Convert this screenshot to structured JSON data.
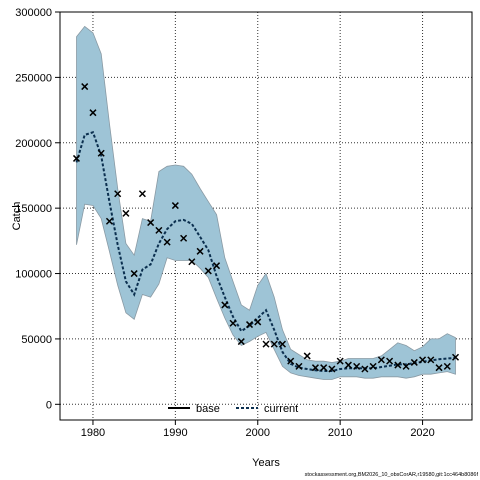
{
  "chart_data": {
    "type": "line",
    "xlabel": "Years",
    "ylabel": "Catch",
    "xlim": [
      1976,
      2026
    ],
    "ylim": [
      -12000,
      300000
    ],
    "xticks": [
      1980,
      1990,
      2000,
      2010,
      2020
    ],
    "yticks": [
      0,
      50000,
      100000,
      150000,
      200000,
      250000,
      300000
    ],
    "grid": true,
    "legend_position": "bottom-center",
    "colors": {
      "band_fill": "#9ec4d6",
      "band_edge": "#8a9aa4",
      "current_line": "#0b2f4f",
      "base_line": "#000000",
      "points": "#000000",
      "grid": "#333333"
    },
    "series": [
      {
        "name": "base",
        "style": "solid",
        "values": []
      },
      {
        "name": "current",
        "style": "dashed",
        "x": [
          1978,
          1979,
          1980,
          1981,
          1982,
          1983,
          1984,
          1985,
          1986,
          1987,
          1988,
          1989,
          1990,
          1991,
          1992,
          1993,
          1994,
          1995,
          1996,
          1997,
          1998,
          1999,
          2000,
          2001,
          2002,
          2003,
          2004,
          2005,
          2006,
          2007,
          2008,
          2009,
          2010,
          2011,
          2012,
          2013,
          2014,
          2015,
          2016,
          2017,
          2018,
          2019,
          2020,
          2021,
          2022,
          2023,
          2024
        ],
        "y": [
          185000,
          206000,
          208000,
          190000,
          155000,
          122000,
          94000,
          84000,
          103000,
          107000,
          123000,
          134000,
          140000,
          141000,
          138000,
          128000,
          118000,
          98000,
          82000,
          67000,
          56000,
          60000,
          66000,
          72000,
          57000,
          40000,
          31000,
          28000,
          27000,
          26000,
          25500,
          25500,
          27000,
          27500,
          27500,
          27500,
          27500,
          28500,
          29500,
          30500,
          30500,
          31500,
          32500,
          33500,
          34500,
          35000,
          35500
        ]
      }
    ],
    "band": {
      "x": [
        1978,
        1979,
        1980,
        1981,
        1982,
        1983,
        1984,
        1985,
        1986,
        1987,
        1988,
        1989,
        1990,
        1991,
        1992,
        1993,
        1994,
        1995,
        1996,
        1997,
        1998,
        1999,
        2000,
        2001,
        2002,
        2003,
        2004,
        2005,
        2006,
        2007,
        2008,
        2009,
        2010,
        2011,
        2012,
        2013,
        2014,
        2015,
        2016,
        2017,
        2018,
        2019,
        2020,
        2021,
        2022,
        2023,
        2024
      ],
      "upper": [
        281000,
        289000,
        284000,
        268000,
        215000,
        165000,
        123000,
        114000,
        142000,
        140000,
        178000,
        182000,
        183000,
        182000,
        176000,
        165000,
        155000,
        145000,
        112000,
        94000,
        76000,
        72000,
        91000,
        100000,
        82000,
        57000,
        42000,
        38000,
        34000,
        33000,
        33000,
        32000,
        33000,
        35000,
        35000,
        35000,
        35000,
        37000,
        42000,
        47000,
        45000,
        41000,
        44000,
        50000,
        50000,
        54000,
        51000
      ],
      "lower": [
        122000,
        153000,
        152000,
        142000,
        117000,
        91000,
        70000,
        65000,
        84000,
        82000,
        92000,
        112000,
        110000,
        110000,
        110000,
        104000,
        97000,
        81000,
        66000,
        53000,
        45000,
        48000,
        52000,
        55000,
        42000,
        29000,
        24000,
        22000,
        21000,
        20000,
        19000,
        19000,
        21000,
        21000,
        21000,
        20000,
        20000,
        21000,
        21000,
        21000,
        20000,
        21000,
        23000,
        23000,
        24000,
        25000,
        23000
      ]
    },
    "observed": {
      "marker": "x",
      "x": [
        1978,
        1979,
        1980,
        1981,
        1982,
        1983,
        1984,
        1985,
        1986,
        1987,
        1988,
        1989,
        1990,
        1991,
        1992,
        1993,
        1994,
        1995,
        1996,
        1997,
        1998,
        1999,
        2000,
        2001,
        2002,
        2003,
        2004,
        2005,
        2006,
        2007,
        2008,
        2009,
        2010,
        2011,
        2012,
        2013,
        2014,
        2015,
        2016,
        2017,
        2018,
        2019,
        2020,
        2021,
        2022,
        2023,
        2024
      ],
      "y": [
        188000,
        243000,
        223000,
        192000,
        140000,
        161000,
        146000,
        100000,
        161000,
        139000,
        133000,
        124000,
        152000,
        127000,
        109000,
        117000,
        102000,
        106000,
        76000,
        62000,
        48000,
        61000,
        63000,
        46000,
        46000,
        46000,
        33000,
        29000,
        37000,
        28000,
        28000,
        27000,
        33000,
        30000,
        29000,
        27000,
        29000,
        34000,
        33000,
        30000,
        29000,
        32000,
        34000,
        34000,
        28000,
        29000,
        36000
      ]
    }
  },
  "footer": {
    "text": "stockassessment.org,BM2026_10_obsCorAR,r19580,git:1cc464b8086f"
  }
}
